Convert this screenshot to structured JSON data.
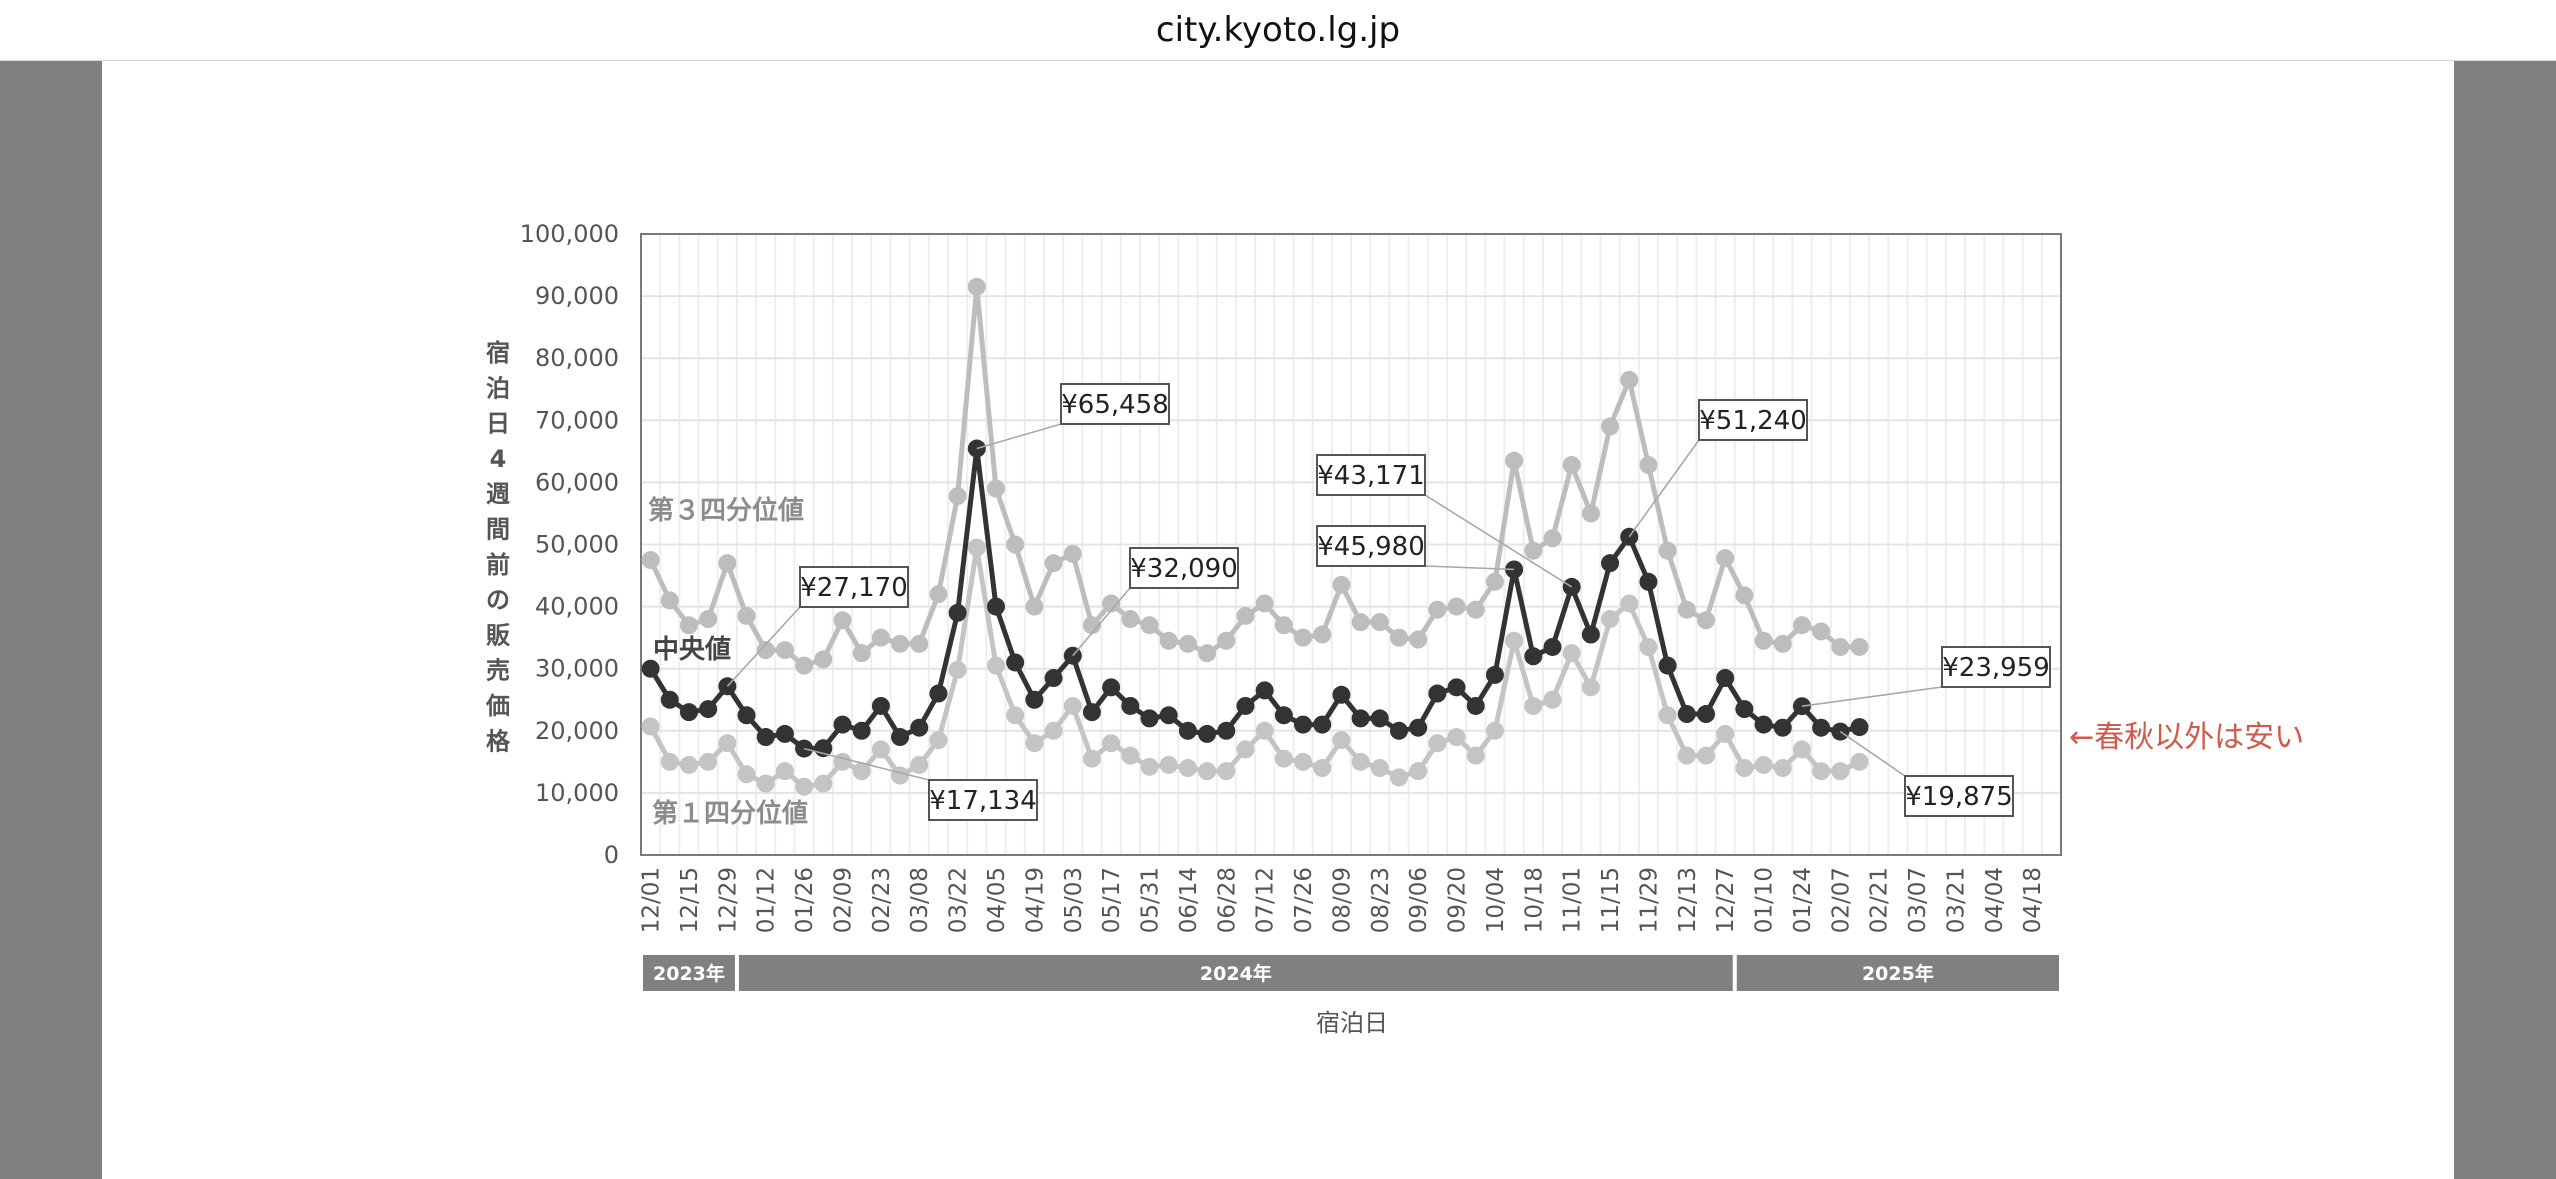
{
  "browser": {
    "url": "city.kyoto.lg.jp"
  },
  "note": "←春秋以外は安い",
  "chart_data": {
    "type": "line",
    "ylabel": "宿泊日4週間前の販売価格",
    "xlabel": "宿泊日",
    "ylim": [
      0,
      100000
    ],
    "yticks": [
      "0",
      "10,000",
      "20,000",
      "30,000",
      "40,000",
      "50,000",
      "60,000",
      "70,000",
      "80,000",
      "90,000",
      "100,000"
    ],
    "grid": true,
    "x_slot_count": 74,
    "xticks": [
      "12/01",
      "12/15",
      "12/29",
      "01/12",
      "01/26",
      "02/09",
      "02/23",
      "03/08",
      "03/22",
      "04/05",
      "04/19",
      "05/03",
      "05/17",
      "05/31",
      "06/14",
      "06/28",
      "07/12",
      "07/26",
      "08/09",
      "08/23",
      "09/06",
      "09/20",
      "10/04",
      "10/18",
      "11/01",
      "11/15",
      "11/29",
      "12/13",
      "12/27",
      "01/10",
      "01/24",
      "02/07",
      "02/21",
      "03/07",
      "03/21",
      "04/04",
      "04/18"
    ],
    "years": [
      {
        "label": "2023年",
        "start_slot": 0,
        "end_slot": 5
      },
      {
        "label": "2024年",
        "start_slot": 5,
        "end_slot": 57
      },
      {
        "label": "2025年",
        "start_slot": 57,
        "end_slot": 74
      }
    ],
    "series": [
      {
        "name": "第３四分位値",
        "color": "#bdbdbd",
        "values": [
          47500,
          41000,
          37000,
          38000,
          47000,
          38500,
          33000,
          33000,
          30500,
          31500,
          37800,
          32500,
          35000,
          34000,
          34000,
          42000,
          57800,
          91500,
          59000,
          50000,
          40000,
          47000,
          48500,
          37000,
          40500,
          38000,
          37000,
          34500,
          34000,
          32500,
          34500,
          38500,
          40500,
          37000,
          35000,
          35500,
          43500,
          37500,
          37500,
          35000,
          34700,
          39500,
          40000,
          39500,
          44000,
          63500,
          49000,
          51000,
          62800,
          55000,
          69000,
          76500,
          62800,
          49000,
          39500,
          37800,
          47800,
          41800,
          34500,
          34000,
          37000,
          36000,
          33500,
          33500
        ]
      },
      {
        "name": "中央値",
        "color": "#333333",
        "values": [
          30000,
          25000,
          23000,
          23500,
          27170,
          22500,
          19000,
          19500,
          17134,
          17200,
          21000,
          20000,
          24000,
          19000,
          20500,
          26000,
          39000,
          65458,
          40000,
          31000,
          25000,
          28500,
          32090,
          23000,
          27000,
          24000,
          22000,
          22500,
          20000,
          19500,
          20000,
          24000,
          26500,
          22500,
          21000,
          21000,
          25800,
          22000,
          22000,
          20000,
          20500,
          26000,
          27000,
          24000,
          29000,
          45980,
          32000,
          33500,
          43171,
          35500,
          47000,
          51240,
          44000,
          30500,
          22700,
          22700,
          28500,
          23500,
          21000,
          20500,
          23959,
          20500,
          19875,
          20600
        ]
      },
      {
        "name": "第１四分位値",
        "color": "#c4c4c4",
        "values": [
          20700,
          15000,
          14500,
          15000,
          18000,
          13000,
          11500,
          13500,
          11000,
          11500,
          15000,
          13500,
          17000,
          12800,
          14500,
          18500,
          29800,
          49500,
          30500,
          22500,
          18000,
          20000,
          24000,
          15500,
          18000,
          16000,
          14200,
          14500,
          14000,
          13500,
          13500,
          17000,
          20000,
          15500,
          15000,
          14000,
          18500,
          15000,
          14000,
          12500,
          13500,
          18000,
          19000,
          16000,
          20000,
          34500,
          24000,
          25000,
          32500,
          27000,
          38000,
          40500,
          33500,
          22500,
          16000,
          16000,
          19500,
          14000,
          14500,
          14000,
          17000,
          13500,
          13500,
          15000
        ]
      }
    ],
    "series_label_positions": [
      "left-upper",
      "left-middle",
      "left-lower"
    ],
    "annotations": [
      {
        "text": "¥27,170",
        "slot": 4,
        "series": 1
      },
      {
        "text": "¥17,134",
        "slot": 8,
        "series": 1
      },
      {
        "text": "¥65,458",
        "slot": 17,
        "series": 1
      },
      {
        "text": "¥32,090",
        "slot": 22,
        "series": 1
      },
      {
        "text": "¥43,171",
        "slot": 48,
        "series": 1
      },
      {
        "text": "¥45,980",
        "slot": 45,
        "series": 1
      },
      {
        "text": "¥51,240",
        "slot": 51,
        "series": 1
      },
      {
        "text": "¥23,959",
        "slot": 60,
        "series": 1
      },
      {
        "text": "¥19,875",
        "slot": 62,
        "series": 1
      }
    ]
  }
}
